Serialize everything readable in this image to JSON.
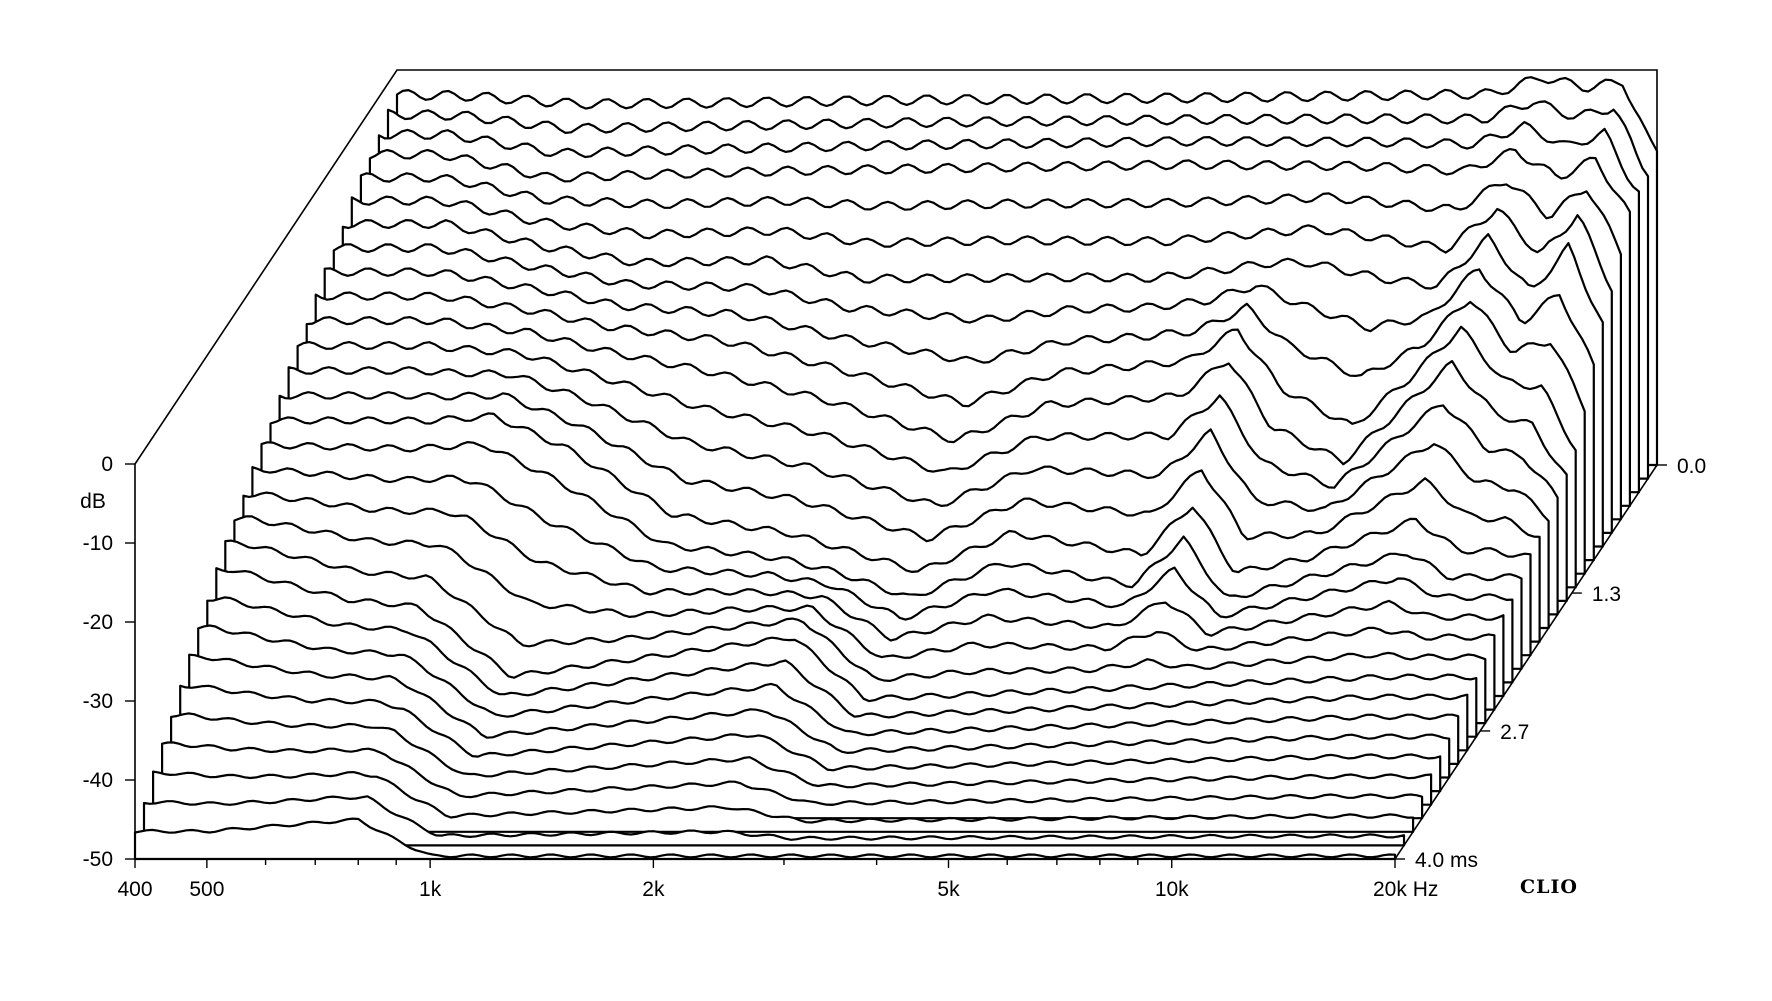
{
  "chart_data": {
    "type": "waterfall",
    "brand": "CLIO",
    "y_axis": {
      "unit": "dB",
      "ticks": [
        0,
        -10,
        -20,
        -30,
        -40,
        -50
      ],
      "range": [
        -50,
        0
      ]
    },
    "x_axis": {
      "unit": "Hz",
      "scale": "log",
      "range": [
        400,
        20000
      ],
      "ticks": [
        {
          "value": 400,
          "label": "400"
        },
        {
          "value": 500,
          "label": "500"
        },
        {
          "value": 1000,
          "label": "1k"
        },
        {
          "value": 2000,
          "label": "2k"
        },
        {
          "value": 5000,
          "label": "5k"
        },
        {
          "value": 10000,
          "label": "10k"
        },
        {
          "value": 20000,
          "label": "20k Hz"
        }
      ],
      "minor_ticks": [
        600,
        700,
        800,
        900,
        3000,
        4000,
        6000,
        7000,
        8000,
        9000
      ]
    },
    "z_axis": {
      "unit": "ms",
      "range": [
        0,
        4.0
      ],
      "ticks": [
        {
          "value": 0.0,
          "label": "0.0"
        },
        {
          "value": 1.3,
          "label": "1.3"
        },
        {
          "value": 2.7,
          "label": "2.7"
        },
        {
          "value": 4.0,
          "label": "4.0  ms"
        }
      ]
    },
    "slices": 30,
    "slice_profiles": [
      {
        "t_ms": 0.0,
        "response": [
          [
            400,
            -3.1
          ],
          [
            500,
            -3.3
          ],
          [
            700,
            -4.3
          ],
          [
            1000,
            -4.2
          ],
          [
            2000,
            -3.8
          ],
          [
            5000,
            -3.5
          ],
          [
            9000,
            -3.2
          ],
          [
            12000,
            -3.0
          ],
          [
            14000,
            -0.9
          ],
          [
            16000,
            -2.2
          ],
          [
            18000,
            -1.5
          ],
          [
            19500,
            -9.0
          ],
          [
            20000,
            -10.2
          ]
        ]
      },
      {
        "t_ms": 0.4,
        "response": [
          [
            500,
            -5.4
          ],
          [
            700,
            -8.4
          ],
          [
            1000,
            -7.8
          ],
          [
            2000,
            -7.1
          ],
          [
            5000,
            -6.5
          ],
          [
            9000,
            -6.8
          ],
          [
            12000,
            -7.3
          ],
          [
            14000,
            -4.9
          ],
          [
            16000,
            -8.1
          ],
          [
            18000,
            -5.9
          ],
          [
            20000,
            -13.0
          ]
        ]
      },
      {
        "t_ms": 0.8,
        "response": [
          [
            550,
            -8.9
          ],
          [
            750,
            -11.9
          ],
          [
            1000,
            -13.9
          ],
          [
            1500,
            -13.4
          ],
          [
            2000,
            -15.7
          ],
          [
            3000,
            -15.3
          ],
          [
            5000,
            -15.6
          ],
          [
            8000,
            -13.3
          ],
          [
            12000,
            -16.6
          ],
          [
            14000,
            -10.5
          ],
          [
            16000,
            -17.4
          ],
          [
            18000,
            -11.2
          ],
          [
            20000,
            -21.3
          ]
        ]
      },
      {
        "t_ms": 1.3,
        "response": [
          [
            600,
            -13.7
          ],
          [
            800,
            -15.5
          ],
          [
            1000,
            -17.5
          ],
          [
            1400,
            -19.4
          ],
          [
            2000,
            -23.1
          ],
          [
            3000,
            -28.3
          ],
          [
            4000,
            -23.8
          ],
          [
            6000,
            -22.2
          ],
          [
            7000,
            -17.8
          ],
          [
            8000,
            -26.3
          ],
          [
            10000,
            -31.6
          ],
          [
            14000,
            -18.1
          ],
          [
            16000,
            -24.8
          ],
          [
            18000,
            -26.5
          ],
          [
            20000,
            -34.0
          ]
        ]
      },
      {
        "t_ms": 2.0,
        "response": [
          [
            650,
            -21.0
          ],
          [
            800,
            -20.2
          ],
          [
            1000,
            -24.4
          ],
          [
            1400,
            -33.7
          ],
          [
            2000,
            -35.8
          ],
          [
            3000,
            -40.6
          ],
          [
            4000,
            -35.7
          ],
          [
            6000,
            -38.9
          ],
          [
            7000,
            -32.4
          ],
          [
            8000,
            -41.0
          ],
          [
            14000,
            -34.5
          ],
          [
            16000,
            -38.0
          ]
        ]
      },
      {
        "t_ms": 2.7,
        "response": [
          [
            420,
            -28.0
          ],
          [
            600,
            -32.0
          ],
          [
            750,
            -33.0
          ],
          [
            1000,
            -42.0
          ],
          [
            2400,
            -36.8
          ],
          [
            3000,
            -45.0
          ],
          [
            15000,
            -42.1
          ]
        ]
      },
      {
        "t_ms": 4.0,
        "response": [
          [
            500,
            -46.5
          ],
          [
            800,
            -45.0
          ],
          [
            900,
            -47.6
          ],
          [
            1000,
            -49.6
          ]
        ]
      }
    ]
  }
}
